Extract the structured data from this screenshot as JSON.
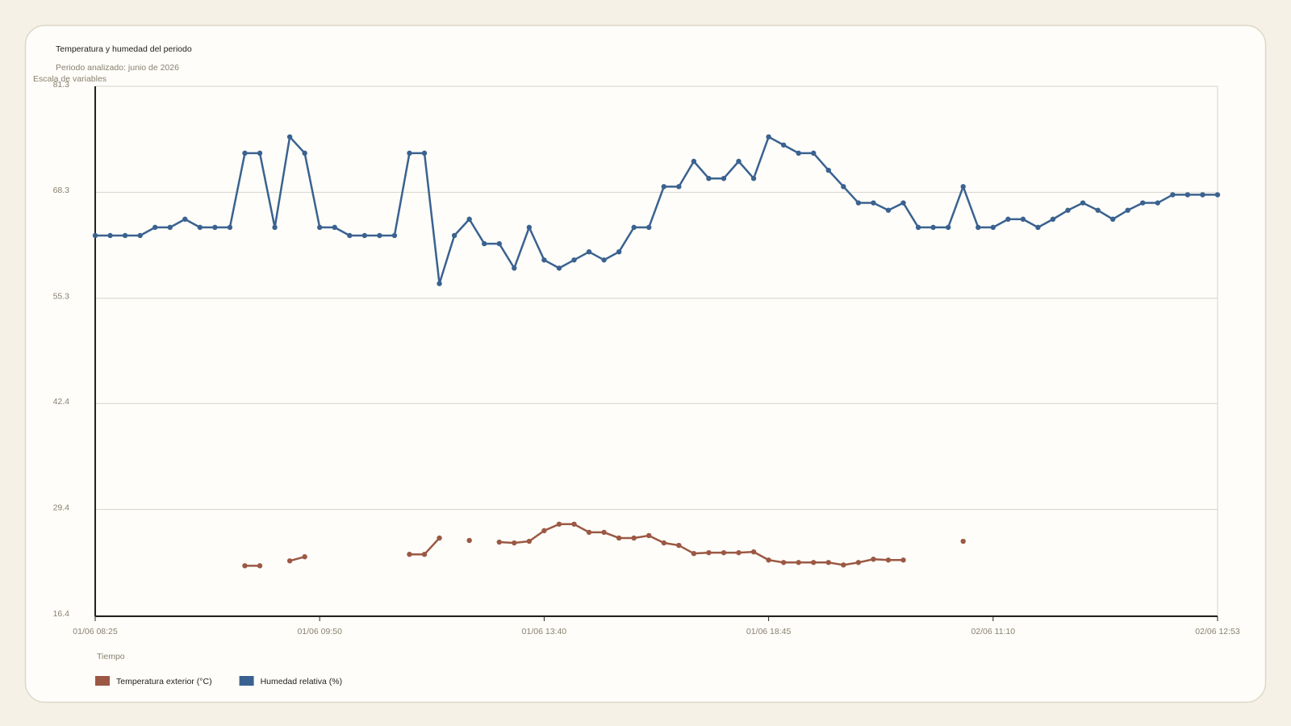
{
  "chart_data": {
    "type": "line",
    "title": "Temperatura y humedad del periodo",
    "subtitle": "Periodo analizado: junio de 2026",
    "y_label": "Escala de variables",
    "x_label": "Tiempo",
    "categories": [
      "01/06 08:25",
      null,
      null,
      null,
      null,
      null,
      null,
      null,
      null,
      null,
      null,
      null,
      null,
      null,
      null,
      "01/06 09:50",
      null,
      null,
      null,
      null,
      null,
      null,
      null,
      null,
      null,
      null,
      null,
      null,
      null,
      null,
      "01/06 13:40",
      null,
      null,
      null,
      null,
      null,
      null,
      null,
      null,
      null,
      null,
      null,
      null,
      null,
      null,
      "01/06 18:45",
      null,
      null,
      null,
      null,
      null,
      null,
      null,
      null,
      null,
      null,
      null,
      null,
      null,
      null,
      "02/06 11:10",
      null,
      null,
      null,
      null,
      null,
      null,
      null,
      null,
      null,
      null,
      null,
      null,
      null,
      null,
      "02/06 12:53"
    ],
    "series": [
      {
        "name": "Temperatura exterior (°C)",
        "color": "#9c5844",
        "values": [
          null,
          null,
          null,
          null,
          null,
          null,
          null,
          null,
          null,
          null,
          22.5,
          22.5,
          null,
          23.1,
          23.6,
          null,
          null,
          null,
          null,
          null,
          null,
          23.9,
          23.9,
          25.9,
          null,
          25.6,
          null,
          25.4,
          25.3,
          25.5,
          26.8,
          27.6,
          27.6,
          26.6,
          26.6,
          25.9,
          25.9,
          26.2,
          25.3,
          25.0,
          24.0,
          24.1,
          24.1,
          24.1,
          24.2,
          23.2,
          22.9,
          22.9,
          22.9,
          22.9,
          22.6,
          22.9,
          23.3,
          23.2,
          23.2,
          null,
          null,
          null,
          25.5,
          null,
          null,
          null,
          null,
          null,
          null,
          null,
          null,
          null,
          null,
          null,
          null,
          null,
          null,
          null,
          null,
          null
        ]
      },
      {
        "name": "Humedad relativa (%)",
        "color": "#3a6290",
        "values": [
          63.0,
          63.0,
          63.0,
          63.0,
          64.0,
          64.0,
          65.0,
          64.0,
          64.0,
          64.0,
          73.1,
          73.1,
          64.0,
          75.1,
          73.1,
          64.0,
          64.0,
          63.0,
          63.0,
          63.0,
          63.0,
          73.1,
          73.1,
          57.1,
          63.0,
          65.0,
          62.0,
          62.0,
          59.0,
          64.0,
          60.0,
          59.0,
          60.0,
          61.0,
          60.0,
          61.0,
          64.0,
          64.0,
          69.0,
          69.0,
          72.1,
          70.0,
          70.0,
          72.1,
          70.0,
          75.1,
          74.1,
          73.1,
          73.1,
          71.0,
          69.0,
          67.0,
          67.0,
          66.1,
          67.0,
          64.0,
          64.0,
          64.0,
          69.0,
          64.0,
          64.0,
          65.0,
          65.0,
          64.0,
          65.0,
          66.1,
          67.0,
          66.1,
          65.0,
          66.1,
          67.0,
          67.0,
          68.0,
          68.0,
          68.0,
          68.0
        ]
      }
    ],
    "ylim": [
      16.4,
      81.3
    ],
    "yticks": [
      16.4,
      29.4,
      42.4,
      55.3,
      68.3,
      81.3
    ],
    "grid": true
  }
}
